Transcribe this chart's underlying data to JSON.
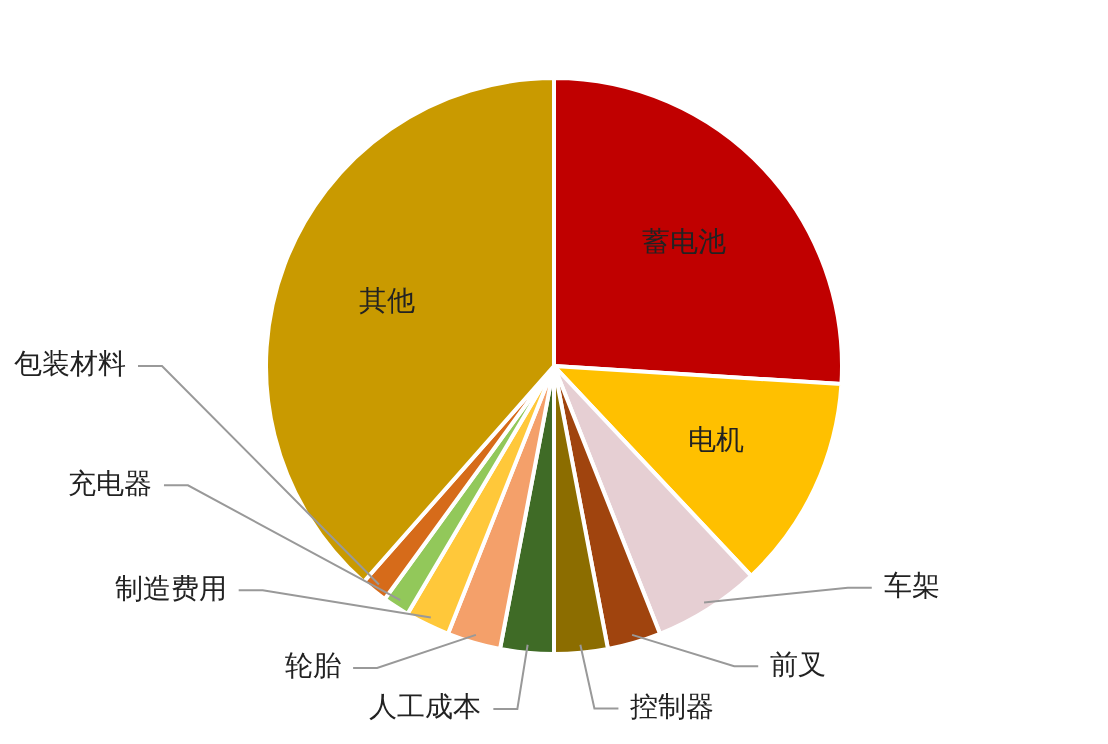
{
  "chart_data": {
    "type": "pie",
    "categories": [
      "蓄电池",
      "电机",
      "车架",
      "前叉",
      "控制器",
      "人工成本",
      "轮胎",
      "制造费用",
      "充电器",
      "包装材料",
      "其他"
    ],
    "values": [
      26,
      12,
      6,
      3,
      3,
      3,
      3,
      2.5,
      1.5,
      1.5,
      38.5
    ],
    "colors": [
      "#c00000",
      "#ffc000",
      "#e6cfd3",
      "#a0440e",
      "#8c6d00",
      "#3f6b26",
      "#f4a06a",
      "#ffc83a",
      "#92c85a",
      "#d66b1a",
      "#c99a00"
    ],
    "legend": false
  }
}
